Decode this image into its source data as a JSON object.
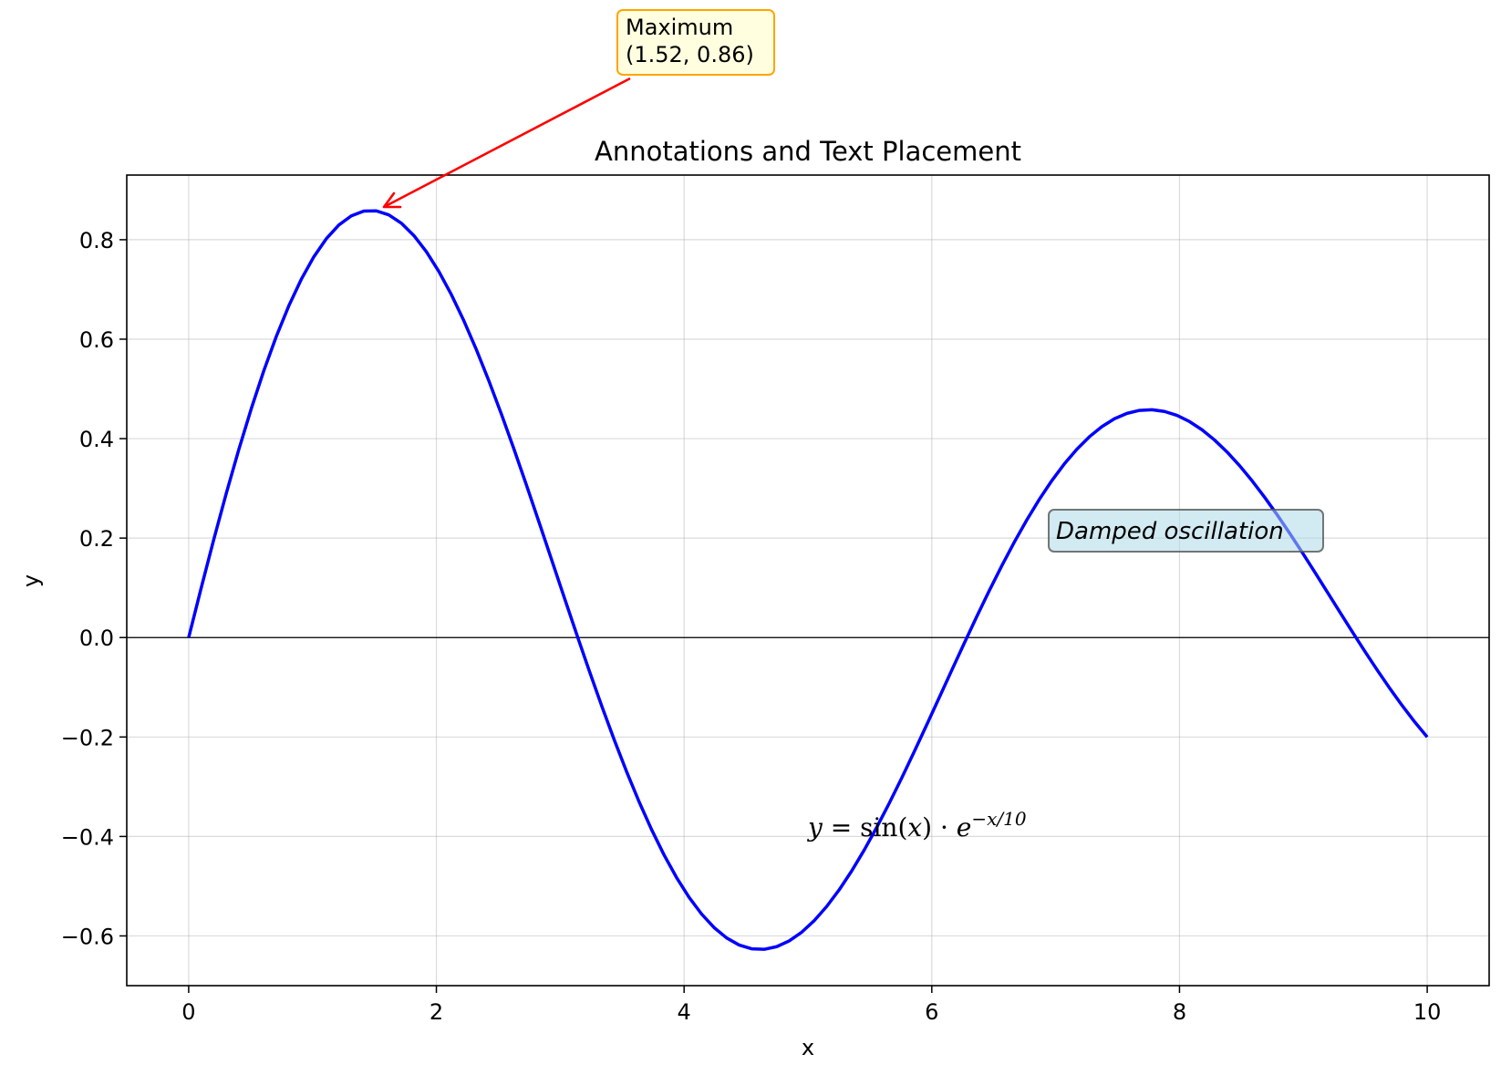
{
  "chart_data": {
    "type": "line",
    "title": "Annotations and Text Placement",
    "xlabel": "x",
    "ylabel": "y",
    "xlim": [
      -0.5,
      10.5
    ],
    "ylim": [
      -0.7,
      0.93
    ],
    "xticks": [
      0,
      2,
      4,
      6,
      8,
      10
    ],
    "yticks": [
      -0.6,
      -0.4,
      -0.2,
      0.0,
      0.2,
      0.4,
      0.6,
      0.8
    ],
    "xtick_labels": [
      "0",
      "2",
      "4",
      "6",
      "8",
      "10"
    ],
    "ytick_labels": [
      "−0.6",
      "−0.4",
      "−0.2",
      "0.0",
      "0.2",
      "0.4",
      "0.6",
      "0.8"
    ],
    "grid": true,
    "zero_line": true,
    "series": [
      {
        "color": "#0000ff",
        "function": "sin(x)*exp(-x/10)",
        "x_range": [
          0,
          10
        ],
        "n_points": 100
      }
    ],
    "annotations": [
      {
        "text_line1": "Maximum",
        "text_line2": "(1.52, 0.86)",
        "xy": [
          1.52,
          0.86
        ],
        "arrow_color": "#ff0000",
        "box_fill": "#ffffe0",
        "box_edge": "#ffa500"
      }
    ],
    "text_notes": [
      {
        "text": "Damped oscillation",
        "style": "italic",
        "box_fill": "#add8e6",
        "box_edge": "#555555"
      }
    ],
    "formula": {
      "lhs": "y",
      "eq": " = sin(",
      "var": "x",
      "mid": ") · ",
      "base": "e",
      "exponent": "−x/10"
    }
  }
}
